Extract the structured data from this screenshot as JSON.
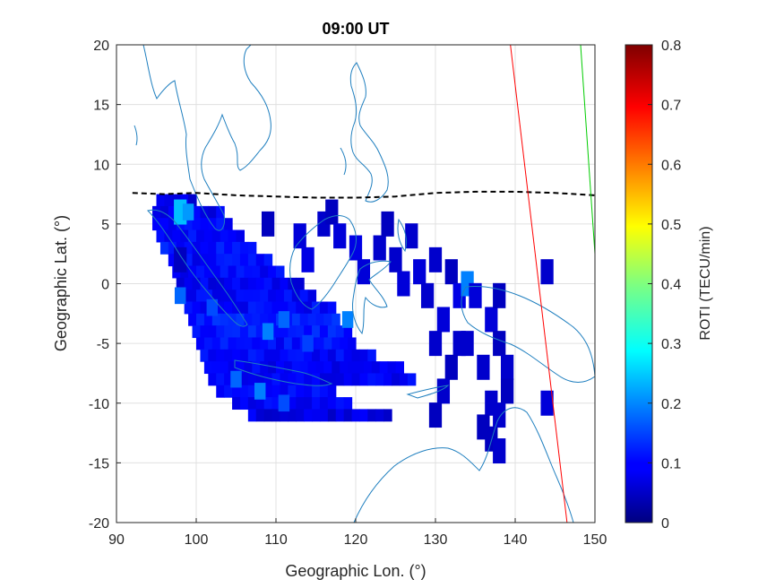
{
  "chart_data": {
    "type": "heatmap",
    "title": "09:00 UT",
    "xlabel": "Geographic Lon. (°)",
    "ylabel": "Geographic Lat. (°)",
    "xlim": [
      90,
      150
    ],
    "ylim": [
      -20,
      20
    ],
    "xticks": [
      "90",
      "100",
      "110",
      "120",
      "130",
      "140",
      "150"
    ],
    "yticks": [
      "20",
      "15",
      "10",
      "5",
      "0",
      "-5",
      "-10",
      "-15",
      "-20"
    ],
    "grid": true,
    "colorbar": {
      "label": "ROTI (TECU/min)",
      "range": [
        0,
        0.8
      ],
      "ticks": [
        "0",
        "0.1",
        "0.2",
        "0.3",
        "0.4",
        "0.5",
        "0.6",
        "0.7",
        "0.8"
      ],
      "colormap": "jet"
    },
    "colors": {
      "coastline": "#1f7fbf",
      "equator_line": "#000000",
      "red_line": "#ff0000",
      "green_line": "#00cc00"
    },
    "region_rows": [
      {
        "lat": 7.0,
        "lon_range": [
          95.5,
          99.5
        ],
        "roti": 0.08
      },
      {
        "lat": 6.0,
        "lon_range": [
          95.0,
          103.0
        ],
        "roti": 0.09
      },
      {
        "lat": 5.0,
        "lon_range": [
          95.0,
          104.0
        ],
        "roti": 0.1
      },
      {
        "lat": 4.0,
        "lon_range": [
          95.5,
          105.5
        ],
        "roti": 0.1
      },
      {
        "lat": 3.0,
        "lon_range": [
          96.0,
          107.0
        ],
        "roti": 0.11
      },
      {
        "lat": 2.0,
        "lon_range": [
          97.0,
          109.0
        ],
        "roti": 0.1
      },
      {
        "lat": 1.0,
        "lon_range": [
          97.5,
          111.0
        ],
        "roti": 0.1
      },
      {
        "lat": 0.0,
        "lon_range": [
          98.0,
          113.0
        ],
        "roti": 0.09
      },
      {
        "lat": -1.0,
        "lon_range": [
          98.5,
          115.0
        ],
        "roti": 0.1
      },
      {
        "lat": -2.0,
        "lon_range": [
          99.0,
          117.0
        ],
        "roti": 0.1
      },
      {
        "lat": -3.0,
        "lon_range": [
          99.5,
          118.0
        ],
        "roti": 0.12
      },
      {
        "lat": -4.0,
        "lon_range": [
          100.0,
          119.5
        ],
        "roti": 0.12
      },
      {
        "lat": -5.0,
        "lon_range": [
          100.5,
          120.0
        ],
        "roti": 0.11
      },
      {
        "lat": -6.0,
        "lon_range": [
          101.0,
          122.0
        ],
        "roti": 0.1
      },
      {
        "lat": -7.0,
        "lon_range": [
          101.5,
          126.0
        ],
        "roti": 0.09
      },
      {
        "lat": -8.0,
        "lon_range": [
          102.0,
          127.0
        ],
        "roti": 0.09
      },
      {
        "lat": -9.0,
        "lon_range": [
          103.0,
          117.0
        ],
        "roti": 0.1
      },
      {
        "lat": -10.0,
        "lon_range": [
          105.0,
          119.0
        ],
        "roti": 0.1
      },
      {
        "lat": -11.0,
        "lon_range": [
          107.0,
          124.0
        ],
        "roti": 0.08
      }
    ],
    "scatter_cells": [
      {
        "lon": 109,
        "lat": 5,
        "roti": 0.05
      },
      {
        "lon": 113,
        "lat": 4,
        "roti": 0.07
      },
      {
        "lon": 114,
        "lat": 2,
        "roti": 0.08
      },
      {
        "lon": 116,
        "lat": 5,
        "roti": 0.06
      },
      {
        "lon": 117,
        "lat": 6,
        "roti": 0.05
      },
      {
        "lon": 118,
        "lat": 4,
        "roti": 0.07
      },
      {
        "lon": 120,
        "lat": 3,
        "roti": 0.08
      },
      {
        "lon": 121,
        "lat": 1,
        "roti": 0.07
      },
      {
        "lon": 123,
        "lat": 3,
        "roti": 0.06
      },
      {
        "lon": 124,
        "lat": 5,
        "roti": 0.05
      },
      {
        "lon": 125,
        "lat": 2,
        "roti": 0.06
      },
      {
        "lon": 126,
        "lat": 0,
        "roti": 0.07
      },
      {
        "lon": 127,
        "lat": 4,
        "roti": 0.06
      },
      {
        "lon": 128,
        "lat": 1,
        "roti": 0.07
      },
      {
        "lon": 129,
        "lat": -1,
        "roti": 0.06
      },
      {
        "lon": 130,
        "lat": 2,
        "roti": 0.06
      },
      {
        "lon": 131,
        "lat": -3,
        "roti": 0.07
      },
      {
        "lon": 132,
        "lat": 1,
        "roti": 0.05
      },
      {
        "lon": 133,
        "lat": -1,
        "roti": 0.08
      },
      {
        "lon": 134,
        "lat": 0,
        "roti": 0.2
      },
      {
        "lon": 135,
        "lat": -1,
        "roti": 0.07
      },
      {
        "lon": 133,
        "lat": -5,
        "roti": 0.06
      },
      {
        "lon": 130,
        "lat": -5,
        "roti": 0.06
      },
      {
        "lon": 132,
        "lat": -7,
        "roti": 0.05
      },
      {
        "lon": 131,
        "lat": -9,
        "roti": 0.06
      },
      {
        "lon": 130,
        "lat": -11,
        "roti": 0.05
      },
      {
        "lon": 134,
        "lat": -5,
        "roti": 0.06
      },
      {
        "lon": 137,
        "lat": -3,
        "roti": 0.07
      },
      {
        "lon": 138,
        "lat": -1,
        "roti": 0.05
      },
      {
        "lon": 136,
        "lat": -7,
        "roti": 0.06
      },
      {
        "lon": 138,
        "lat": -5,
        "roti": 0.05
      },
      {
        "lon": 139,
        "lat": -7,
        "roti": 0.06
      },
      {
        "lon": 139,
        "lat": -9,
        "roti": 0.05
      },
      {
        "lon": 137,
        "lat": -10,
        "roti": 0.06
      },
      {
        "lon": 137,
        "lat": -13,
        "roti": 0.05
      },
      {
        "lon": 138,
        "lat": -11,
        "roti": 0.06
      },
      {
        "lon": 136,
        "lat": -12,
        "roti": 0.05
      },
      {
        "lon": 138,
        "lat": -14,
        "roti": 0.06
      },
      {
        "lon": 144,
        "lat": -10,
        "roti": 0.07
      },
      {
        "lon": 144,
        "lat": 1,
        "roti": 0.06
      },
      {
        "lon": 98,
        "lat": 2,
        "roti": 0.05
      },
      {
        "lon": 98,
        "lat": 6,
        "roti": 0.25
      }
    ],
    "hotspots": [
      {
        "lon": 99,
        "lat": 6,
        "roti": 0.22
      },
      {
        "lon": 111,
        "lat": -3,
        "roti": 0.18
      },
      {
        "lon": 109,
        "lat": -4,
        "roti": 0.2
      },
      {
        "lon": 108,
        "lat": -9,
        "roti": 0.2
      },
      {
        "lon": 105,
        "lat": -8,
        "roti": 0.18
      },
      {
        "lon": 119,
        "lat": -3,
        "roti": 0.2
      },
      {
        "lon": 98,
        "lat": -1,
        "roti": 0.18
      },
      {
        "lon": 102,
        "lat": -2,
        "roti": 0.16
      },
      {
        "lon": 114,
        "lat": -5,
        "roti": 0.15
      },
      {
        "lon": 111,
        "lat": -10,
        "roti": 0.16
      }
    ],
    "magnetic_equator_line": [
      [
        92,
        7.6
      ],
      [
        96,
        7.5
      ],
      [
        100,
        7.6
      ],
      [
        105,
        7.4
      ],
      [
        110,
        7.3
      ],
      [
        115,
        7.2
      ],
      [
        120,
        7.2
      ],
      [
        125,
        7.3
      ],
      [
        130,
        7.6
      ],
      [
        135,
        7.7
      ],
      [
        140,
        7.7
      ],
      [
        145,
        7.6
      ],
      [
        150,
        7.4
      ]
    ],
    "red_line": [
      [
        139.4,
        20
      ],
      [
        146.5,
        -20
      ]
    ],
    "green_line": [
      [
        148.2,
        20
      ],
      [
        150,
        2.5
      ]
    ]
  }
}
